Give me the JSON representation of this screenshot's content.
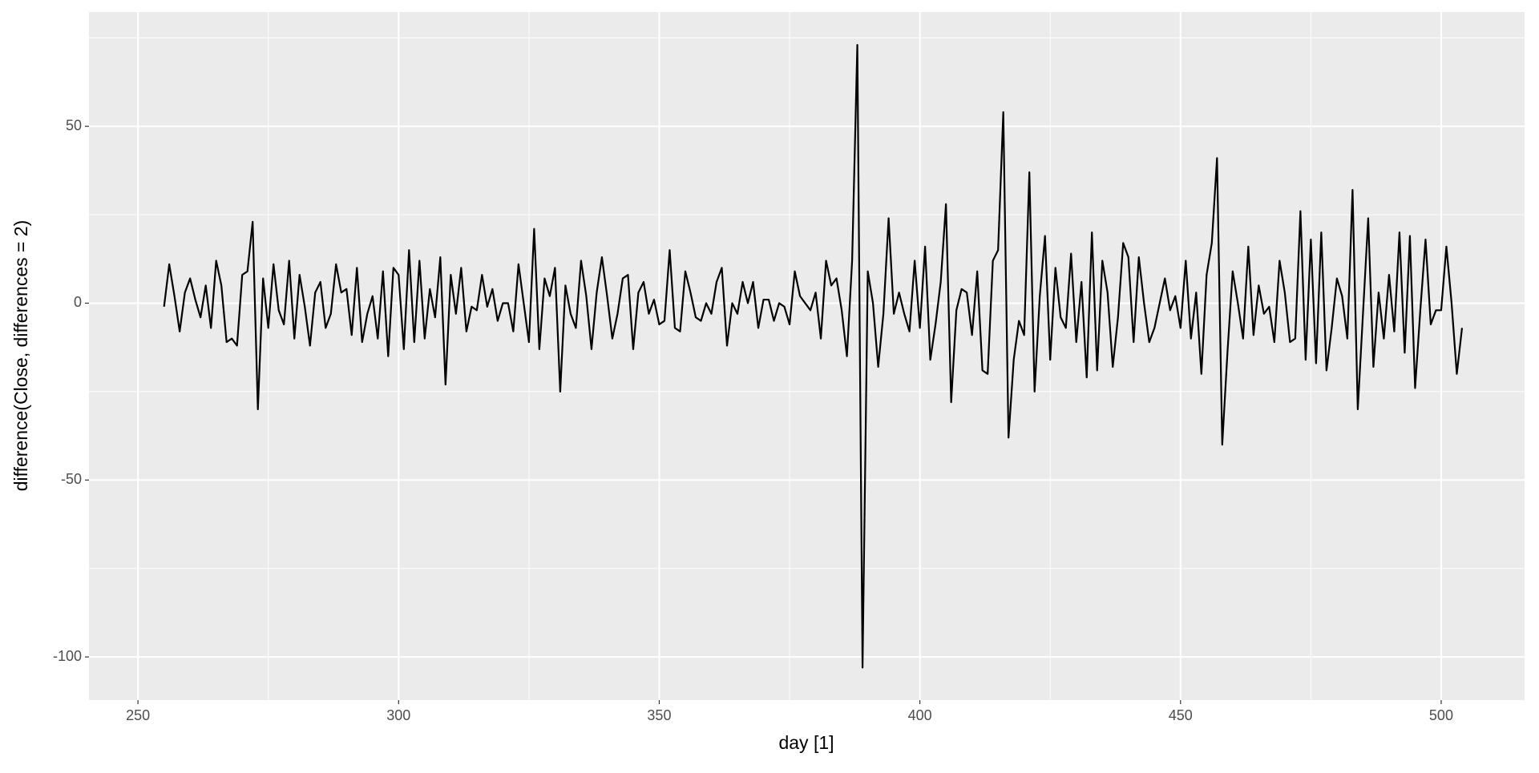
{
  "chart_data": {
    "type": "line",
    "x_label": "day [1]",
    "y_label": "difference(Close, differences = 2)",
    "xlim": [
      240.6,
      516.0
    ],
    "ylim": [
      -112.2,
      82.3
    ],
    "xticks": [
      250,
      300,
      350,
      400,
      450,
      500
    ],
    "yticks": [
      -100,
      -50,
      0,
      50
    ],
    "grid": true,
    "color": "#000000",
    "x": [
      255,
      256,
      257,
      258,
      259,
      260,
      261,
      262,
      263,
      264,
      265,
      266,
      267,
      268,
      269,
      270,
      271,
      272,
      273,
      274,
      275,
      276,
      277,
      278,
      279,
      280,
      281,
      282,
      283,
      284,
      285,
      286,
      287,
      288,
      289,
      290,
      291,
      292,
      293,
      294,
      295,
      296,
      297,
      298,
      299,
      300,
      301,
      302,
      303,
      304,
      305,
      306,
      307,
      308,
      309,
      310,
      311,
      312,
      313,
      314,
      315,
      316,
      317,
      318,
      319,
      320,
      321,
      322,
      323,
      324,
      325,
      326,
      327,
      328,
      329,
      330,
      331,
      332,
      333,
      334,
      335,
      336,
      337,
      338,
      339,
      340,
      341,
      342,
      343,
      344,
      345,
      346,
      347,
      348,
      349,
      350,
      351,
      352,
      353,
      354,
      355,
      356,
      357,
      358,
      359,
      360,
      361,
      362,
      363,
      364,
      365,
      366,
      367,
      368,
      369,
      370,
      371,
      372,
      373,
      374,
      375,
      376,
      377,
      378,
      379,
      380,
      381,
      382,
      383,
      384,
      385,
      386,
      387,
      388,
      389,
      390,
      391,
      392,
      393,
      394,
      395,
      396,
      397,
      398,
      399,
      400,
      401,
      402,
      403,
      404,
      405,
      406,
      407,
      408,
      409,
      410,
      411,
      412,
      413,
      414,
      415,
      416,
      417,
      418,
      419,
      420,
      421,
      422,
      423,
      424,
      425,
      426,
      427,
      428,
      429,
      430,
      431,
      432,
      433,
      434,
      435,
      436,
      437,
      438,
      439,
      440,
      441,
      442,
      443,
      444,
      445,
      446,
      447,
      448,
      449,
      450,
      451,
      452,
      453,
      454,
      455,
      456,
      457,
      458,
      459,
      460,
      461,
      462,
      463,
      464,
      465,
      466,
      467,
      468,
      469,
      470,
      471,
      472,
      473,
      474,
      475,
      476,
      477,
      478,
      479,
      480,
      481,
      482,
      483,
      484,
      485,
      486,
      487,
      488,
      489,
      490,
      491,
      492,
      493,
      494,
      495,
      496,
      497,
      498,
      499,
      500,
      501,
      502,
      503,
      504
    ],
    "values": [
      -1,
      11,
      2,
      -8,
      3,
      7,
      1,
      -4,
      5,
      -7,
      12,
      5,
      -11,
      -10,
      -12,
      8,
      9,
      23,
      -30,
      7,
      -7,
      11,
      -2,
      -6,
      12,
      -10,
      8,
      -1,
      -12,
      3,
      6,
      -7,
      -3,
      11,
      3,
      4,
      -9,
      10,
      -11,
      -3,
      2,
      -10,
      9,
      -15,
      10,
      8,
      -13,
      15,
      -11,
      12,
      -10,
      4,
      -4,
      13,
      -23,
      8,
      -3,
      10,
      -8,
      -1,
      -2,
      8,
      -1,
      4,
      -5,
      0,
      0,
      -8,
      11,
      0,
      -11,
      21,
      -13,
      7,
      2,
      10,
      -25,
      5,
      -3,
      -7,
      12,
      2,
      -13,
      3,
      13,
      2,
      -10,
      -3,
      7,
      8,
      -13,
      3,
      6,
      -3,
      1,
      -6,
      -5,
      15,
      -7,
      -8,
      9,
      3,
      -4,
      -5,
      0,
      -3,
      6,
      10,
      -12,
      0,
      -3,
      6,
      0,
      6,
      -7,
      1,
      1,
      -5,
      0,
      -1,
      -6,
      9,
      2,
      0,
      -2,
      3,
      -10,
      12,
      5,
      7,
      -2,
      -15,
      12,
      73,
      -103,
      9,
      0,
      -18,
      -3,
      24,
      -3,
      3,
      -3,
      -8,
      12,
      -7,
      16,
      -16,
      -6,
      6,
      28,
      -28,
      -2,
      4,
      3,
      -9,
      9,
      -19,
      -20,
      12,
      15,
      54,
      -38,
      -16,
      -5,
      -9,
      37,
      -25,
      2,
      19,
      -16,
      10,
      -4,
      -7,
      14,
      -11,
      6,
      -21,
      20,
      -19,
      12,
      3,
      -18,
      -4,
      17,
      13,
      -11,
      13,
      0,
      -11,
      -7,
      0,
      7,
      -2,
      2,
      -7,
      12,
      -10,
      3,
      -20,
      8,
      17,
      41,
      -40,
      -14,
      9,
      0,
      -10,
      16,
      -9,
      5,
      -3,
      -1,
      -11,
      12,
      3,
      -11,
      -10,
      26,
      -16,
      18,
      -17,
      20,
      -19,
      -7,
      7,
      2,
      -10,
      32,
      -30,
      -3,
      24,
      -18,
      3,
      -10,
      8,
      -8,
      20,
      -14,
      19,
      -24,
      -2,
      18,
      -6,
      -2,
      -2,
      16,
      0,
      -20,
      -7
    ]
  }
}
